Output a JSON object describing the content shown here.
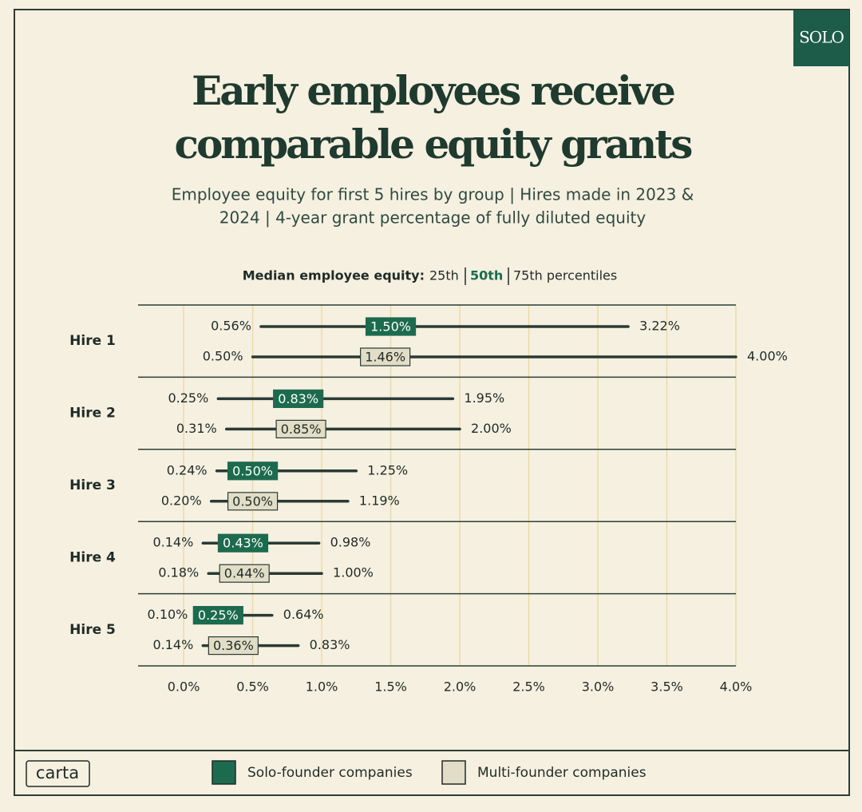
{
  "branding": {
    "badge": "SOLO",
    "logo": "carta"
  },
  "chart_data": {
    "type": "range",
    "title": [
      "Early employees receive",
      "comparable equity grants"
    ],
    "subtitle": [
      "Employee equity for first 5 hires by group | Hires made in 2023 &",
      "2024 | 4-year grant percentage of fully diluted equity"
    ],
    "key": {
      "label": "Median employee equity:",
      "low": "25th",
      "mid": "50th",
      "high": "75th percentiles"
    },
    "categories": [
      "Hire 1",
      "Hire 2",
      "Hire 3",
      "Hire 4",
      "Hire 5"
    ],
    "series": [
      {
        "name": "Solo-founder companies",
        "color": "#1d6b4f",
        "low": [
          0.56,
          0.25,
          0.24,
          0.14,
          0.1
        ],
        "low_labels": [
          "0.56%",
          "0.25%",
          "0.24%",
          "0.14%",
          "0.10%"
        ],
        "values": [
          1.5,
          0.83,
          0.5,
          0.43,
          0.25
        ],
        "value_labels": [
          "1.50%",
          "0.83%",
          "0.50%",
          "0.43%",
          "0.25%"
        ],
        "high": [
          3.22,
          1.95,
          1.25,
          0.98,
          0.64
        ],
        "high_labels": [
          "3.22%",
          "1.95%",
          "1.25%",
          "0.98%",
          "0.64%"
        ]
      },
      {
        "name": "Multi-founder companies",
        "color": "#e2ddc6",
        "low": [
          0.5,
          0.31,
          0.2,
          0.18,
          0.14
        ],
        "low_labels": [
          "0.50%",
          "0.31%",
          "0.20%",
          "0.18%",
          "0.14%"
        ],
        "values": [
          1.46,
          0.85,
          0.5,
          0.44,
          0.36
        ],
        "value_labels": [
          "1.46%",
          "0.85%",
          "0.50%",
          "0.44%",
          "0.36%"
        ],
        "high": [
          4.0,
          2.0,
          1.19,
          1.0,
          0.83
        ],
        "high_labels": [
          "4.00%",
          "2.00%",
          "1.19%",
          "1.00%",
          "0.83%"
        ]
      }
    ],
    "xlim": [
      -0.33,
      4.0
    ],
    "xticks": [
      {
        "value": 0,
        "label": "0.0%"
      },
      {
        "value": 0.5,
        "label": "0.5%"
      },
      {
        "value": 1,
        "label": "1.0%"
      },
      {
        "value": 1.5,
        "label": "1.5%"
      },
      {
        "value": 2,
        "label": "2.0%"
      },
      {
        "value": 2.5,
        "label": "2.5%"
      },
      {
        "value": 3,
        "label": "3.0%"
      },
      {
        "value": 3.5,
        "label": "3.5%"
      },
      {
        "value": 4,
        "label": "4.0%"
      }
    ],
    "grid": true
  }
}
